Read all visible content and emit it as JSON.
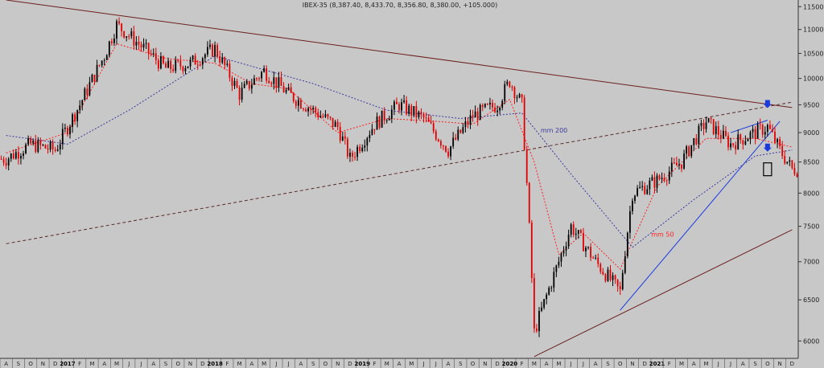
{
  "chart_data": {
    "type": "candlestick",
    "title": "IBEX-35 (8,387.40, 8,433.70, 8,356.80, 8,380.00, +105.000)",
    "ylim": [
      5800,
      11650
    ],
    "y_ticks": [
      6000,
      6500,
      7000,
      7500,
      8000,
      8500,
      9000,
      9500,
      10000,
      10500,
      11000,
      11500
    ],
    "x_month_labels": [
      "A",
      "S",
      "O",
      "N",
      "D",
      "2017",
      "F",
      "M",
      "A",
      "M",
      "J",
      "J",
      "A",
      "S",
      "O",
      "N",
      "D",
      "2018",
      "F",
      "M",
      "A",
      "M",
      "J",
      "J",
      "A",
      "S",
      "O",
      "N",
      "D",
      "2019",
      "F",
      "M",
      "A",
      "M",
      "J",
      "J",
      "A",
      "S",
      "O",
      "N",
      "D",
      "2020",
      "F",
      "M",
      "A",
      "M",
      "J",
      "J",
      "A",
      "S",
      "O",
      "N",
      "D",
      "2021",
      "F",
      "M",
      "A",
      "M",
      "J",
      "J",
      "A",
      "S",
      "O",
      "N",
      "D"
    ],
    "x_year_labels": [
      "2017",
      "2018",
      "2019",
      "2020",
      "2021"
    ],
    "x_start": "2016-08",
    "x_end": "2021-12",
    "series": [
      {
        "name": "mm 50",
        "color": "#ff2020",
        "style": "dotted"
      },
      {
        "name": "mm 200",
        "color": "#3a3aa0",
        "style": "dotted"
      }
    ],
    "price_path": [
      {
        "x": "2016-08",
        "y": 8550
      },
      {
        "x": "2016-10",
        "y": 8800
      },
      {
        "x": "2016-12",
        "y": 8700
      },
      {
        "x": "2017-02",
        "y": 9500
      },
      {
        "x": "2017-04",
        "y": 10450
      },
      {
        "x": "2017-05",
        "y": 11100
      },
      {
        "x": "2017-07",
        "y": 10650
      },
      {
        "x": "2017-09",
        "y": 10200
      },
      {
        "x": "2017-11",
        "y": 10300
      },
      {
        "x": "2018-01",
        "y": 10600
      },
      {
        "x": "2018-03",
        "y": 9700
      },
      {
        "x": "2018-05",
        "y": 10150
      },
      {
        "x": "2018-07",
        "y": 9700
      },
      {
        "x": "2018-09",
        "y": 9400
      },
      {
        "x": "2018-11",
        "y": 9100
      },
      {
        "x": "2018-12",
        "y": 8550
      },
      {
        "x": "2019-02",
        "y": 9150
      },
      {
        "x": "2019-04",
        "y": 9500
      },
      {
        "x": "2019-06",
        "y": 9250
      },
      {
        "x": "2019-08",
        "y": 8700
      },
      {
        "x": "2019-10",
        "y": 9300
      },
      {
        "x": "2019-12",
        "y": 9500
      },
      {
        "x": "2020-01",
        "y": 9950
      },
      {
        "x": "2020-02",
        "y": 9500
      },
      {
        "x": "2020-03",
        "y": 6100
      },
      {
        "x": "2020-05",
        "y": 7000
      },
      {
        "x": "2020-06",
        "y": 7500
      },
      {
        "x": "2020-08",
        "y": 7000
      },
      {
        "x": "2020-10",
        "y": 6600
      },
      {
        "x": "2020-11",
        "y": 8000
      },
      {
        "x": "2021-01",
        "y": 8200
      },
      {
        "x": "2021-03",
        "y": 8500
      },
      {
        "x": "2021-05",
        "y": 9200
      },
      {
        "x": "2021-07",
        "y": 8800
      },
      {
        "x": "2021-09",
        "y": 9000
      },
      {
        "x": "2021-10",
        "y": 9100
      },
      {
        "x": "2021-11",
        "y": 8700
      },
      {
        "x": "2021-12",
        "y": 8380
      }
    ],
    "mm50_path": [
      {
        "x": "2016-08",
        "y": 8650
      },
      {
        "x": "2017-01",
        "y": 9000
      },
      {
        "x": "2017-05",
        "y": 10700
      },
      {
        "x": "2017-09",
        "y": 10400
      },
      {
        "x": "2018-01",
        "y": 10300
      },
      {
        "x": "2018-04",
        "y": 9900
      },
      {
        "x": "2018-07",
        "y": 9800
      },
      {
        "x": "2018-11",
        "y": 9000
      },
      {
        "x": "2019-03",
        "y": 9250
      },
      {
        "x": "2019-07",
        "y": 9200
      },
      {
        "x": "2019-10",
        "y": 9150
      },
      {
        "x": "2020-01",
        "y": 9600
      },
      {
        "x": "2020-03",
        "y": 8500
      },
      {
        "x": "2020-05",
        "y": 7100
      },
      {
        "x": "2020-07",
        "y": 7400
      },
      {
        "x": "2020-10",
        "y": 6900
      },
      {
        "x": "2021-01",
        "y": 8100
      },
      {
        "x": "2021-05",
        "y": 8900
      },
      {
        "x": "2021-09",
        "y": 8900
      },
      {
        "x": "2021-12",
        "y": 8750
      }
    ],
    "mm200_path": [
      {
        "x": "2016-08",
        "y": 8950
      },
      {
        "x": "2017-01",
        "y": 8800
      },
      {
        "x": "2017-06",
        "y": 9400
      },
      {
        "x": "2018-01",
        "y": 10450
      },
      {
        "x": "2018-09",
        "y": 9900
      },
      {
        "x": "2019-03",
        "y": 9400
      },
      {
        "x": "2019-09",
        "y": 9250
      },
      {
        "x": "2020-02",
        "y": 9350
      },
      {
        "x": "2020-06",
        "y": 8300
      },
      {
        "x": "2020-11",
        "y": 7200
      },
      {
        "x": "2021-04",
        "y": 7900
      },
      {
        "x": "2021-09",
        "y": 8600
      },
      {
        "x": "2021-12",
        "y": 8700
      }
    ],
    "trendlines": [
      {
        "color": "#6b1f1f",
        "style": "solid",
        "from": {
          "x": "2016-08",
          "y": 11650
        },
        "to": {
          "x": "2021-12",
          "y": 9450
        }
      },
      {
        "color": "#6b1f1f",
        "style": "solid",
        "from": {
          "x": "2020-03",
          "y": 5820
        },
        "to": {
          "x": "2021-12",
          "y": 7450
        }
      },
      {
        "color": "#5a2a2a",
        "style": "dashed",
        "from": {
          "x": "2016-08",
          "y": 7250
        },
        "to": {
          "x": "2021-12",
          "y": 9550
        }
      },
      {
        "color": "#1a3ae0",
        "style": "solid",
        "from": {
          "x": "2020-10",
          "y": 6370
        },
        "to": {
          "x": "2021-11",
          "y": 9200
        }
      },
      {
        "color": "#1a3ae0",
        "style": "solid",
        "from": {
          "x": "2021-07",
          "y": 9000
        },
        "to": {
          "x": "2021-10",
          "y": 9220
        }
      }
    ],
    "annotations": [
      {
        "text": "mm 200",
        "x": "2020-03",
        "y": 9000,
        "color": "#3a3aa0"
      },
      {
        "text": "mm 50",
        "x": "2020-12",
        "y": 7350,
        "color": "#ff2020"
      }
    ],
    "markers": [
      {
        "type": "down-arrow",
        "x": "2021-10",
        "y": 9470,
        "color": "#1a3ae0"
      },
      {
        "type": "down-arrow",
        "x": "2021-10",
        "y": 8700,
        "color": "#1a3ae0"
      },
      {
        "type": "box",
        "x": "2021-10",
        "y": 8380,
        "color": "#000000"
      }
    ],
    "grid": false,
    "legend": "none"
  }
}
